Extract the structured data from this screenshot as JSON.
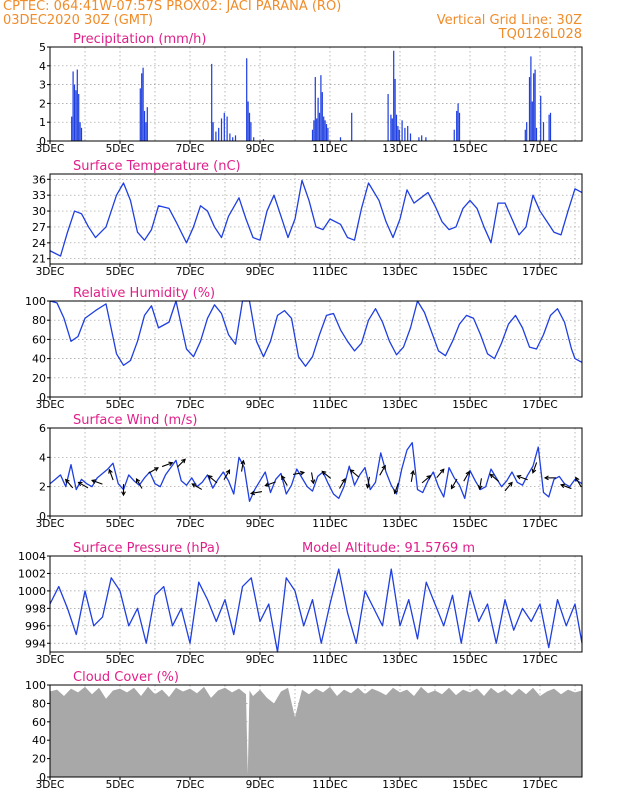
{
  "header": {
    "left_line1": "CPTEC:   064:41W-07:57S   PROX02: JACI PARANA (RO)",
    "left_line2": "03DEC2020 30Z (GMT)",
    "right_line2": "Vertical Grid Line: 30Z",
    "right_line3": "TQ0126L028"
  },
  "colors": {
    "header": "#f08c2a",
    "title": "#e0208a",
    "series": "#1f3fe0",
    "cloud": "#a8a8a8",
    "grid": "#9a9a9a"
  },
  "date_ticks": [
    "3DEC",
    "5DEC",
    "7DEC",
    "9DEC",
    "11DEC",
    "13DEC",
    "15DEC",
    "17DEC"
  ],
  "chart_data": [
    {
      "type": "bar",
      "title": "Precipitation (mm/h)",
      "x_unit": "day",
      "xlim": [
        3.0,
        18.2
      ],
      "ylim": [
        0,
        5
      ],
      "yticks": [
        0,
        1,
        2,
        3,
        4,
        5
      ],
      "grid": true,
      "x": [
        3.62,
        3.66,
        3.7,
        3.74,
        3.78,
        3.82,
        3.86,
        3.9,
        5.58,
        5.62,
        5.66,
        5.7,
        5.74,
        5.78,
        7.62,
        7.66,
        7.74,
        7.82,
        7.9,
        7.98,
        8.06,
        8.14,
        8.22,
        8.3,
        8.62,
        8.66,
        8.7,
        8.74,
        8.82,
        9.1,
        10.5,
        10.54,
        10.58,
        10.62,
        10.66,
        10.7,
        10.74,
        10.78,
        10.82,
        10.86,
        10.9,
        10.94,
        11.3,
        11.62,
        12.66,
        12.74,
        12.78,
        12.82,
        12.86,
        12.9,
        12.94,
        12.98,
        13.06,
        13.14,
        13.22,
        13.3,
        13.54,
        13.62,
        13.74,
        14.55,
        14.62,
        14.66,
        14.7,
        16.58,
        16.62,
        16.7,
        16.74,
        16.78,
        16.82,
        16.86,
        16.9,
        17.02,
        17.1,
        17.26,
        17.3
      ],
      "values": [
        1.3,
        3.7,
        3.0,
        2.7,
        3.8,
        2.5,
        1.0,
        0.7,
        2.8,
        3.6,
        3.9,
        1.6,
        1.0,
        1.8,
        4.1,
        1.0,
        0.5,
        0.7,
        1.2,
        1.5,
        1.3,
        0.4,
        0.2,
        0.3,
        4.4,
        2.1,
        1.5,
        1.0,
        0.2,
        0.1,
        0.6,
        1.1,
        3.4,
        1.2,
        2.3,
        1.5,
        3.5,
        2.6,
        1.3,
        1.1,
        0.9,
        0.7,
        0.2,
        1.5,
        2.5,
        1.4,
        1.2,
        4.8,
        3.3,
        1.4,
        0.8,
        0.6,
        1.1,
        0.7,
        0.8,
        0.4,
        0.2,
        0.3,
        0.2,
        0.6,
        1.6,
        2.0,
        1.5,
        0.6,
        1.0,
        3.4,
        4.5,
        2.1,
        3.6,
        3.8,
        0.7,
        2.4,
        1.0,
        1.4,
        1.5
      ]
    },
    {
      "type": "line",
      "title": "Surface Temperature (nC)",
      "x_unit": "day",
      "xlim": [
        3.0,
        18.2
      ],
      "ylim": [
        20,
        37
      ],
      "yticks": [
        21,
        24,
        27,
        30,
        33,
        36
      ],
      "grid": true,
      "x": [
        3.0,
        3.3,
        3.5,
        3.7,
        3.9,
        4.1,
        4.3,
        4.6,
        4.9,
        5.1,
        5.3,
        5.5,
        5.7,
        5.9,
        6.1,
        6.4,
        6.6,
        6.9,
        7.1,
        7.3,
        7.5,
        7.7,
        7.9,
        8.1,
        8.4,
        8.6,
        8.8,
        9.0,
        9.2,
        9.4,
        9.6,
        9.8,
        10.0,
        10.2,
        10.4,
        10.6,
        10.8,
        11.0,
        11.3,
        11.5,
        11.7,
        11.9,
        12.1,
        12.4,
        12.6,
        12.8,
        13.0,
        13.2,
        13.4,
        13.6,
        13.8,
        14.0,
        14.2,
        14.4,
        14.6,
        14.8,
        15.0,
        15.2,
        15.4,
        15.6,
        15.8,
        16.0,
        16.2,
        16.4,
        16.6,
        16.8,
        17.0,
        17.2,
        17.4,
        17.6,
        17.8,
        18.0,
        18.2
      ],
      "values": [
        22.5,
        21.5,
        26,
        30,
        29.5,
        27,
        25,
        27,
        33,
        35.3,
        32,
        26,
        24.5,
        26.5,
        31,
        30.5,
        28,
        24,
        27,
        31,
        30,
        27,
        25,
        29,
        32.5,
        28.5,
        25,
        24.5,
        30,
        33,
        29,
        25,
        28.5,
        35.8,
        32,
        27,
        26.5,
        28.5,
        27.5,
        25,
        24.5,
        30.5,
        35.3,
        32,
        28,
        25,
        28.5,
        34,
        31.5,
        32.5,
        33.5,
        31,
        28,
        26.5,
        27,
        30.5,
        32,
        30.5,
        27,
        24,
        31.5,
        31.5,
        28.5,
        25.5,
        27,
        33,
        30,
        28,
        26,
        25.5,
        30,
        34.2,
        33.5
      ]
    },
    {
      "type": "line",
      "title": "Relative Humidity (%)",
      "x_unit": "day",
      "xlim": [
        3.0,
        18.2
      ],
      "ylim": [
        0,
        100
      ],
      "yticks": [
        0,
        20,
        40,
        60,
        80,
        100
      ],
      "grid": true,
      "x": [
        3.0,
        3.2,
        3.4,
        3.6,
        3.8,
        4.0,
        4.3,
        4.6,
        4.9,
        5.1,
        5.3,
        5.5,
        5.7,
        5.9,
        6.1,
        6.4,
        6.6,
        6.9,
        7.1,
        7.3,
        7.5,
        7.7,
        7.9,
        8.1,
        8.3,
        8.5,
        8.7,
        8.9,
        9.1,
        9.3,
        9.5,
        9.7,
        9.9,
        10.1,
        10.3,
        10.5,
        10.7,
        10.9,
        11.1,
        11.3,
        11.5,
        11.7,
        11.9,
        12.1,
        12.3,
        12.5,
        12.7,
        12.9,
        13.1,
        13.3,
        13.5,
        13.7,
        13.9,
        14.1,
        14.3,
        14.5,
        14.7,
        14.9,
        15.1,
        15.3,
        15.5,
        15.7,
        15.9,
        16.1,
        16.3,
        16.5,
        16.7,
        16.9,
        17.1,
        17.3,
        17.5,
        17.7,
        17.9,
        18.0,
        18.2
      ],
      "values": [
        100,
        98,
        82,
        58,
        63,
        82,
        90,
        97,
        45,
        33,
        38,
        58,
        85,
        95,
        72,
        78,
        100,
        50,
        42,
        58,
        82,
        96,
        87,
        65,
        55,
        100,
        100,
        58,
        42,
        58,
        85,
        90,
        82,
        42,
        32,
        42,
        65,
        85,
        87,
        70,
        58,
        48,
        56,
        80,
        92,
        78,
        58,
        44,
        52,
        72,
        100,
        88,
        68,
        48,
        43,
        58,
        76,
        85,
        82,
        65,
        45,
        40,
        56,
        76,
        85,
        72,
        52,
        50,
        65,
        85,
        92,
        78,
        50,
        40,
        36
      ]
    },
    {
      "type": "line",
      "title": "Surface Wind (m/s)",
      "x_unit": "day",
      "xlim": [
        3.0,
        18.2
      ],
      "ylim": [
        0,
        6
      ],
      "yticks": [
        0,
        2,
        4,
        6
      ],
      "grid": true,
      "x": [
        3.0,
        3.15,
        3.3,
        3.45,
        3.6,
        3.75,
        3.9,
        4.05,
        4.2,
        4.35,
        4.5,
        4.65,
        4.8,
        4.95,
        5.1,
        5.25,
        5.4,
        5.55,
        5.7,
        5.85,
        6.0,
        6.15,
        6.3,
        6.45,
        6.6,
        6.75,
        6.9,
        7.05,
        7.2,
        7.35,
        7.5,
        7.65,
        7.8,
        7.95,
        8.1,
        8.25,
        8.4,
        8.55,
        8.7,
        8.85,
        9.0,
        9.15,
        9.3,
        9.45,
        9.6,
        9.75,
        9.9,
        10.05,
        10.2,
        10.35,
        10.5,
        10.65,
        10.8,
        10.95,
        11.1,
        11.25,
        11.4,
        11.55,
        11.7,
        11.85,
        12.0,
        12.15,
        12.3,
        12.45,
        12.6,
        12.75,
        12.9,
        13.05,
        13.2,
        13.35,
        13.5,
        13.65,
        13.8,
        13.95,
        14.1,
        14.25,
        14.4,
        14.55,
        14.7,
        14.85,
        15.0,
        15.15,
        15.3,
        15.45,
        15.6,
        15.75,
        15.9,
        16.05,
        16.2,
        16.35,
        16.5,
        16.65,
        16.8,
        16.95,
        17.1,
        17.25,
        17.4,
        17.55,
        17.7,
        17.85,
        18.0,
        18.2
      ],
      "values": [
        2.2,
        2.5,
        2.8,
        2.0,
        3.5,
        1.8,
        2.5,
        2.2,
        2.0,
        2.6,
        2.9,
        3.2,
        3.6,
        2.2,
        1.8,
        2.8,
        2.4,
        2.1,
        2.6,
        3.0,
        2.2,
        2.0,
        2.8,
        3.3,
        3.8,
        2.4,
        2.1,
        2.6,
        2.0,
        2.3,
        2.8,
        1.9,
        2.5,
        3.0,
        2.4,
        1.5,
        4.0,
        3.3,
        1.0,
        1.8,
        2.4,
        3.0,
        1.6,
        2.5,
        2.9,
        1.5,
        2.1,
        3.2,
        2.6,
        2.0,
        1.7,
        2.7,
        3.0,
        2.2,
        1.5,
        1.2,
        2.0,
        3.4,
        2.1,
        2.8,
        3.3,
        1.8,
        2.3,
        4.3,
        3.0,
        2.1,
        1.5,
        3.2,
        4.5,
        5.0,
        1.8,
        1.6,
        2.4,
        3.0,
        2.0,
        1.3,
        3.3,
        2.6,
        2.1,
        1.2,
        3.1,
        2.4,
        1.8,
        2.0,
        3.2,
        2.6,
        2.0,
        2.4,
        3.0,
        2.3,
        2.1,
        2.8,
        3.4,
        4.7,
        1.6,
        1.3,
        2.5,
        2.7,
        2.2,
        2.0,
        2.5,
        2.2
      ]
    },
    {
      "type": "line",
      "title": "Surface Pressure (hPa)",
      "annotation": "Model Altitude: 91.5769 m",
      "x_unit": "day",
      "xlim": [
        3.0,
        18.2
      ],
      "ylim": [
        993,
        1004
      ],
      "yticks": [
        994,
        996,
        998,
        1000,
        1002,
        1004
      ],
      "grid": true,
      "x": [
        3.0,
        3.25,
        3.5,
        3.75,
        4.0,
        4.25,
        4.5,
        4.75,
        5.0,
        5.25,
        5.5,
        5.75,
        6.0,
        6.25,
        6.5,
        6.75,
        7.0,
        7.25,
        7.5,
        7.75,
        8.0,
        8.25,
        8.5,
        8.75,
        9.0,
        9.25,
        9.5,
        9.75,
        10.0,
        10.25,
        10.5,
        10.75,
        11.0,
        11.25,
        11.5,
        11.75,
        12.0,
        12.25,
        12.5,
        12.75,
        13.0,
        13.25,
        13.5,
        13.75,
        14.0,
        14.25,
        14.5,
        14.75,
        15.0,
        15.25,
        15.5,
        15.75,
        16.0,
        16.25,
        16.5,
        16.75,
        17.0,
        17.25,
        17.5,
        17.75,
        18.0,
        18.2
      ],
      "values": [
        998.5,
        1000.5,
        998.0,
        995.0,
        1000.0,
        996.0,
        997.0,
        1001.5,
        1000.0,
        996.0,
        998.0,
        994.0,
        999.5,
        1000.5,
        996.0,
        998.0,
        994.0,
        1001.0,
        999.0,
        996.5,
        999.0,
        995.0,
        1000.5,
        1001.5,
        996.5,
        998.5,
        993.0,
        1001.5,
        1000.0,
        996.0,
        999.0,
        994.0,
        998.5,
        1002.5,
        997.5,
        994.0,
        1000.0,
        998.0,
        996.0,
        1002.5,
        996.0,
        999.0,
        994.5,
        1001.0,
        998.5,
        996.0,
        999.5,
        994.0,
        1000.0,
        996.5,
        998.5,
        994.0,
        999.0,
        995.5,
        998.0,
        996.5,
        998.5,
        993.5,
        999.0,
        996.0,
        998.5,
        994.0
      ]
    },
    {
      "type": "area",
      "title": "Cloud Cover (%)",
      "x_unit": "day",
      "xlim": [
        3.0,
        18.2
      ],
      "ylim": [
        0,
        100
      ],
      "yticks": [
        0,
        20,
        40,
        60,
        80,
        100
      ],
      "grid": true,
      "x": [
        3.0,
        3.2,
        3.4,
        3.6,
        3.8,
        4.0,
        4.2,
        4.4,
        4.6,
        4.8,
        5.0,
        5.2,
        5.4,
        5.6,
        5.8,
        6.0,
        6.2,
        6.4,
        6.6,
        6.8,
        7.0,
        7.2,
        7.4,
        7.6,
        7.8,
        8.0,
        8.2,
        8.4,
        8.6,
        8.65,
        8.7,
        8.8,
        9.0,
        9.2,
        9.4,
        9.6,
        9.8,
        10.0,
        10.2,
        10.4,
        10.6,
        10.8,
        11.0,
        11.2,
        11.4,
        11.6,
        11.8,
        12.0,
        12.2,
        12.4,
        12.6,
        12.8,
        13.0,
        13.2,
        13.4,
        13.6,
        13.8,
        14.0,
        14.2,
        14.4,
        14.6,
        14.8,
        15.0,
        15.2,
        15.4,
        15.6,
        15.8,
        16.0,
        16.2,
        16.4,
        16.6,
        16.8,
        17.0,
        17.2,
        17.4,
        17.6,
        17.8,
        18.0,
        18.2
      ],
      "values": [
        93,
        95,
        88,
        96,
        92,
        98,
        90,
        97,
        85,
        94,
        96,
        92,
        97,
        88,
        98,
        90,
        95,
        87,
        97,
        93,
        96,
        91,
        98,
        86,
        94,
        97,
        92,
        96,
        90,
        3,
        94,
        88,
        95,
        86,
        80,
        93,
        97,
        65,
        95,
        90,
        96,
        92,
        98,
        88,
        95,
        91,
        97,
        90,
        96,
        93,
        89,
        97,
        92,
        95,
        88,
        98,
        91,
        94,
        90,
        97,
        89,
        95,
        92,
        96,
        88,
        97,
        91,
        95,
        89,
        96,
        90,
        97,
        88,
        93,
        96,
        90,
        95,
        92,
        94
      ]
    }
  ],
  "wind_arrows": [
    {
      "x": 3.55,
      "y": 2.2,
      "deg": -130
    },
    {
      "x": 3.95,
      "y": 2.1,
      "deg": -150
    },
    {
      "x": 4.35,
      "y": 2.3,
      "deg": -160
    },
    {
      "x": 4.75,
      "y": 2.8,
      "deg": -110
    },
    {
      "x": 5.1,
      "y": 1.8,
      "deg": 90
    },
    {
      "x": 5.55,
      "y": 2.2,
      "deg": -120
    },
    {
      "x": 5.95,
      "y": 3.1,
      "deg": -30
    },
    {
      "x": 6.35,
      "y": 3.5,
      "deg": -20
    },
    {
      "x": 6.75,
      "y": 3.6,
      "deg": -45
    },
    {
      "x": 7.2,
      "y": 2.0,
      "deg": -150
    },
    {
      "x": 7.65,
      "y": 2.5,
      "deg": -140
    },
    {
      "x": 8.05,
      "y": 2.8,
      "deg": -60
    },
    {
      "x": 8.5,
      "y": 3.4,
      "deg": -80
    },
    {
      "x": 8.9,
      "y": 1.6,
      "deg": 170
    },
    {
      "x": 9.3,
      "y": 2.2,
      "deg": 160
    },
    {
      "x": 9.7,
      "y": 2.4,
      "deg": -120
    },
    {
      "x": 10.1,
      "y": 2.9,
      "deg": -10
    },
    {
      "x": 10.5,
      "y": 2.6,
      "deg": 80
    },
    {
      "x": 10.9,
      "y": 2.8,
      "deg": -140
    },
    {
      "x": 11.35,
      "y": 2.2,
      "deg": -60
    },
    {
      "x": 11.7,
      "y": 2.9,
      "deg": -140
    },
    {
      "x": 12.1,
      "y": 2.3,
      "deg": 100
    },
    {
      "x": 12.5,
      "y": 3.1,
      "deg": -60
    },
    {
      "x": 12.9,
      "y": 1.9,
      "deg": 110
    },
    {
      "x": 13.35,
      "y": 2.7,
      "deg": -80
    },
    {
      "x": 13.75,
      "y": 2.5,
      "deg": -40
    },
    {
      "x": 14.15,
      "y": 2.9,
      "deg": -50
    },
    {
      "x": 14.55,
      "y": 2.2,
      "deg": 120
    },
    {
      "x": 14.9,
      "y": 2.7,
      "deg": -60
    },
    {
      "x": 15.3,
      "y": 2.2,
      "deg": 100
    },
    {
      "x": 15.7,
      "y": 2.6,
      "deg": -140
    },
    {
      "x": 16.1,
      "y": 2.0,
      "deg": -50
    },
    {
      "x": 16.5,
      "y": 2.6,
      "deg": -160
    },
    {
      "x": 16.85,
      "y": 3.3,
      "deg": 110
    },
    {
      "x": 17.3,
      "y": 2.6,
      "deg": -180
    },
    {
      "x": 17.75,
      "y": 2.0,
      "deg": -160
    },
    {
      "x": 18.1,
      "y": 2.3,
      "deg": -120
    }
  ]
}
